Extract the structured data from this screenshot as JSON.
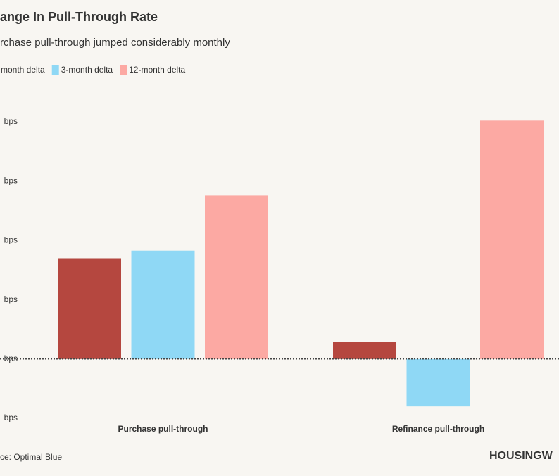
{
  "chart_data": {
    "type": "bar",
    "title": "ange In Pull-Through Rate",
    "subtitle": "rchase pull-through jumped considerably monthly",
    "categories": [
      "Purchase pull-through",
      "Refinance pull-through"
    ],
    "series": [
      {
        "name": "month delta",
        "color": "#b5473f",
        "values": [
          169,
          29
        ]
      },
      {
        "name": "3-month delta",
        "color": "#8fd8f5",
        "values": [
          183,
          -80
        ]
      },
      {
        "name": "12-month delta",
        "color": "#fca9a3",
        "values": [
          276,
          402
        ]
      }
    ],
    "ylim": [
      -100,
      400
    ],
    "yticks": [
      {
        "value": -100,
        "label": "bps"
      },
      {
        "value": 0,
        "label": "bps"
      },
      {
        "value": 100,
        "label": "bps"
      },
      {
        "value": 200,
        "label": "bps"
      },
      {
        "value": 300,
        "label": "bps"
      },
      {
        "value": 400,
        "label": "bps"
      }
    ],
    "grid": false,
    "source": "ce: Optimal Blue",
    "logo": "HOUSINGW"
  }
}
